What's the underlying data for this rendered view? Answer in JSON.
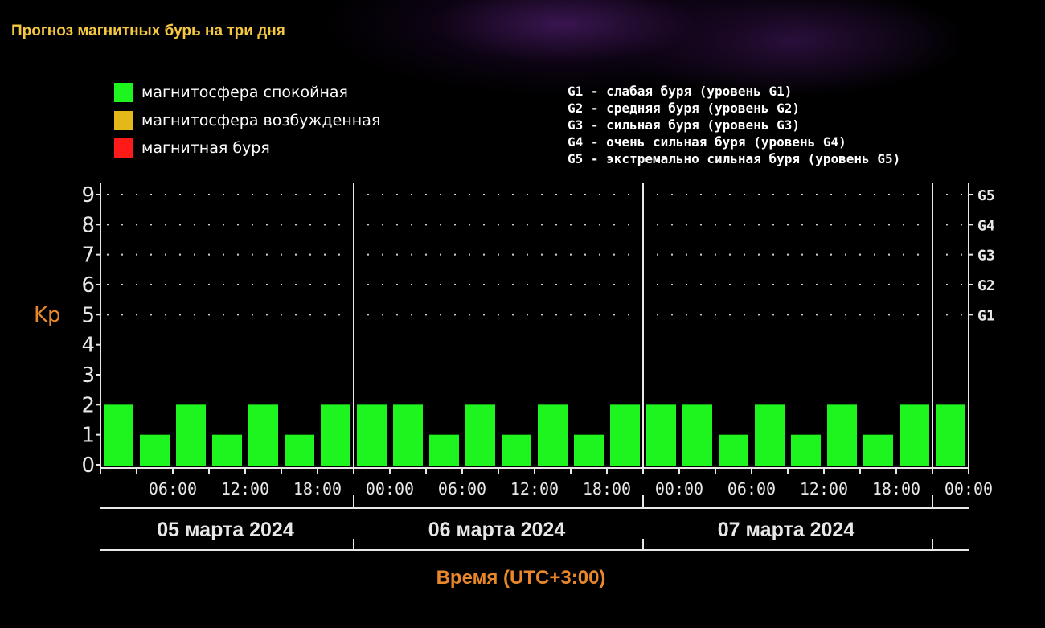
{
  "page": {
    "title": "Прогноз магнитных бурь на три дня",
    "legend": [
      {
        "label": "магнитосфера спокойная",
        "color": "#1ef51e"
      },
      {
        "label": "магнитосфера возбужденная",
        "color": "#e5b81a"
      },
      {
        "label": "магнитная буря",
        "color": "#ff1a1a"
      }
    ],
    "g_levels": [
      "G1 - слабая буря (уровень G1)",
      "G2 - средняя буря (уровень G2)",
      "G3 - сильная буря (уровень G3)",
      "G4 - очень сильная буря (уровень G4)",
      "G5 - экстремально сильная буря (уровень G5)"
    ]
  },
  "chart_data": {
    "type": "bar",
    "ylabel": "Kp",
    "xlabel": "Время (UTC+3:00)",
    "ylim": [
      0,
      9
    ],
    "y_ticks": [
      "0",
      "1",
      "2",
      "3",
      "4",
      "5",
      "6",
      "7",
      "8",
      "9"
    ],
    "right_labels": [
      {
        "value": 5,
        "label": "G1"
      },
      {
        "value": 6,
        "label": "G2"
      },
      {
        "value": 7,
        "label": "G3"
      },
      {
        "value": 8,
        "label": "G4"
      },
      {
        "value": 9,
        "label": "G5"
      }
    ],
    "x_tick_labels": [
      "06:00",
      "12:00",
      "18:00",
      "00:00",
      "06:00",
      "12:00",
      "18:00",
      "00:00",
      "06:00",
      "12:00",
      "18:00",
      "00:00"
    ],
    "days": [
      "05 марта 2024",
      "06 марта 2024",
      "07 марта 2024"
    ],
    "bar_color": "#1ef51e",
    "values": [
      2,
      1,
      2,
      1,
      2,
      1,
      2,
      2,
      2,
      1,
      2,
      1,
      2,
      1,
      2,
      2,
      2,
      1,
      2,
      1,
      2,
      1,
      2,
      2
    ],
    "grid": "dotted"
  }
}
